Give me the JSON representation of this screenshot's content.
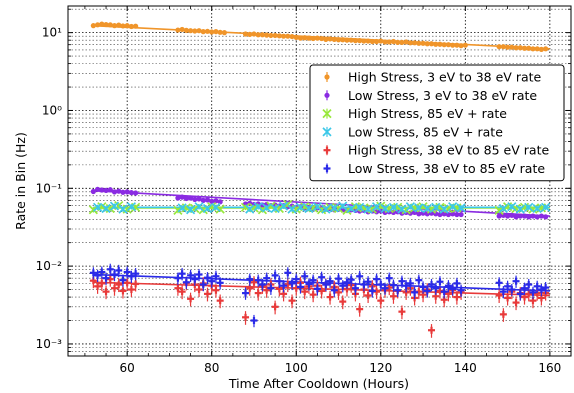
{
  "chart_data": {
    "type": "scatter",
    "title": "",
    "xlabel": "Time After Cooldown (Hours)",
    "ylabel": "Rate in Bin (Hz)",
    "xlim": [
      46,
      165
    ],
    "ylim": [
      0.0007,
      22
    ],
    "yscale": "log",
    "x_ticks": [
      60,
      80,
      100,
      120,
      140,
      160
    ],
    "x_tick_labels": [
      "60",
      "80",
      "100",
      "120",
      "140",
      "160"
    ],
    "y_ticks": [
      0.001,
      0.01,
      0.1,
      1,
      10
    ],
    "y_tick_labels": [
      "10⁻³",
      "10⁻²",
      "10⁻¹",
      "10⁰",
      "10¹"
    ],
    "grid": "major-and-minor, dotted",
    "legend_position": "right",
    "series": [
      {
        "name": "High Stress, 3 eV to 38 eV rate",
        "color": "#f0952a",
        "marker": "dot",
        "fit": [
          [
            52,
            12.3
          ],
          [
            160,
            6.2
          ]
        ],
        "x": [
          52,
          53,
          54,
          55,
          56,
          57,
          58,
          59,
          60,
          61,
          62,
          72,
          73,
          74,
          75,
          76,
          77,
          78,
          79,
          80,
          81,
          82,
          83,
          88,
          89,
          90,
          91,
          92,
          93,
          94,
          95,
          96,
          97,
          98,
          99,
          100,
          101,
          102,
          103,
          104,
          105,
          106,
          107,
          108,
          109,
          110,
          111,
          112,
          113,
          114,
          115,
          116,
          117,
          118,
          119,
          120,
          121,
          122,
          123,
          124,
          125,
          126,
          127,
          128,
          129,
          130,
          131,
          132,
          133,
          134,
          135,
          136,
          137,
          138,
          139,
          140,
          148,
          149,
          150,
          151,
          152,
          153,
          154,
          155,
          156,
          157,
          158,
          159
        ],
        "y": [
          12.3,
          12.6,
          12.9,
          12.7,
          12.6,
          12.3,
          12.5,
          12.2,
          12.3,
          12.0,
          12.1,
          10.8,
          11.0,
          10.7,
          10.6,
          10.5,
          10.6,
          10.3,
          10.4,
          10.2,
          10.3,
          10.1,
          10.0,
          9.6,
          9.5,
          9.6,
          9.4,
          9.4,
          9.3,
          9.2,
          9.2,
          9.1,
          9.0,
          9.0,
          8.9,
          8.7,
          8.5,
          8.6,
          8.5,
          8.4,
          8.5,
          8.4,
          8.2,
          8.3,
          8.2,
          8.1,
          8.1,
          8.0,
          8.0,
          7.9,
          7.9,
          7.8,
          7.8,
          7.7,
          7.7,
          7.8,
          7.6,
          7.6,
          7.7,
          7.5,
          7.5,
          7.6,
          7.4,
          7.4,
          7.3,
          7.3,
          7.2,
          7.2,
          7.1,
          7.1,
          7.0,
          7.0,
          6.9,
          6.9,
          6.8,
          6.9,
          6.6,
          6.6,
          6.5,
          6.5,
          6.4,
          6.4,
          6.3,
          6.3,
          6.2,
          6.2,
          6.1,
          6.2
        ],
        "yerr_frac": 0.05
      },
      {
        "name": "Low Stress, 3 eV to 38 eV rate",
        "color": "#8a2be2",
        "marker": "dot",
        "fit": [
          [
            52,
            0.093
          ],
          [
            160,
            0.044
          ]
        ],
        "x": [
          52,
          53,
          54,
          55,
          56,
          57,
          58,
          59,
          60,
          61,
          62,
          72,
          73,
          74,
          75,
          76,
          77,
          78,
          79,
          80,
          81,
          82,
          88,
          89,
          90,
          91,
          92,
          93,
          94,
          95,
          96,
          97,
          98,
          99,
          100,
          101,
          102,
          103,
          104,
          105,
          106,
          107,
          108,
          109,
          110,
          111,
          112,
          113,
          114,
          115,
          116,
          117,
          118,
          119,
          120,
          121,
          122,
          123,
          124,
          125,
          126,
          127,
          128,
          129,
          130,
          131,
          132,
          133,
          134,
          135,
          136,
          137,
          138,
          139,
          148,
          149,
          150,
          151,
          152,
          153,
          154,
          155,
          156,
          157,
          158,
          159
        ],
        "y": [
          0.091,
          0.097,
          0.095,
          0.094,
          0.096,
          0.09,
          0.092,
          0.089,
          0.09,
          0.088,
          0.087,
          0.075,
          0.077,
          0.074,
          0.075,
          0.072,
          0.073,
          0.07,
          0.071,
          0.068,
          0.069,
          0.067,
          0.063,
          0.064,
          0.062,
          0.063,
          0.061,
          0.062,
          0.06,
          0.061,
          0.059,
          0.06,
          0.058,
          0.059,
          0.057,
          0.058,
          0.056,
          0.057,
          0.055,
          0.056,
          0.055,
          0.054,
          0.055,
          0.053,
          0.054,
          0.053,
          0.052,
          0.053,
          0.052,
          0.051,
          0.052,
          0.05,
          0.051,
          0.05,
          0.051,
          0.049,
          0.05,
          0.049,
          0.05,
          0.048,
          0.049,
          0.048,
          0.049,
          0.047,
          0.048,
          0.047,
          0.048,
          0.047,
          0.046,
          0.047,
          0.046,
          0.047,
          0.046,
          0.046,
          0.044,
          0.045,
          0.044,
          0.045,
          0.043,
          0.044,
          0.044,
          0.043,
          0.044,
          0.043,
          0.044,
          0.043
        ],
        "yerr_frac": 0.07
      },
      {
        "name": "High Stress, 85 eV + rate",
        "color": "#98e83a",
        "marker": "x",
        "fit": [
          [
            52,
            0.056
          ],
          [
            160,
            0.056
          ]
        ],
        "x": [
          52,
          54,
          56,
          58,
          60,
          62,
          72,
          74,
          76,
          78,
          80,
          82,
          88,
          90,
          92,
          94,
          96,
          98,
          100,
          102,
          104,
          106,
          108,
          110,
          112,
          114,
          116,
          118,
          120,
          122,
          124,
          126,
          128,
          130,
          132,
          134,
          136,
          138,
          148,
          150,
          152,
          154,
          156,
          158
        ],
        "y": [
          0.053,
          0.058,
          0.055,
          0.06,
          0.054,
          0.057,
          0.052,
          0.056,
          0.055,
          0.053,
          0.058,
          0.054,
          0.057,
          0.056,
          0.053,
          0.059,
          0.055,
          0.062,
          0.054,
          0.058,
          0.056,
          0.053,
          0.057,
          0.055,
          0.052,
          0.058,
          0.056,
          0.054,
          0.059,
          0.055,
          0.057,
          0.053,
          0.056,
          0.058,
          0.054,
          0.057,
          0.055,
          0.056,
          0.052,
          0.058,
          0.055,
          0.057,
          0.054,
          0.056
        ],
        "yerr_frac": 0.08
      },
      {
        "name": "Low Stress, 85 eV + rate",
        "color": "#3cc8e8",
        "marker": "x",
        "fit": [
          [
            52,
            0.057
          ],
          [
            160,
            0.057
          ]
        ],
        "x": [
          53,
          55,
          57,
          59,
          61,
          73,
          75,
          77,
          79,
          81,
          89,
          91,
          93,
          95,
          97,
          99,
          101,
          103,
          105,
          107,
          109,
          111,
          113,
          115,
          117,
          119,
          121,
          123,
          125,
          127,
          129,
          131,
          133,
          135,
          137,
          139,
          149,
          151,
          153,
          155,
          157,
          159
        ],
        "y": [
          0.057,
          0.055,
          0.059,
          0.054,
          0.058,
          0.056,
          0.053,
          0.058,
          0.055,
          0.057,
          0.054,
          0.058,
          0.056,
          0.055,
          0.059,
          0.054,
          0.057,
          0.055,
          0.058,
          0.054,
          0.056,
          0.059,
          0.055,
          0.057,
          0.054,
          0.058,
          0.055,
          0.057,
          0.054,
          0.058,
          0.056,
          0.055,
          0.057,
          0.054,
          0.058,
          0.056,
          0.055,
          0.058,
          0.054,
          0.057,
          0.055,
          0.057
        ],
        "yerr_frac": 0.08
      },
      {
        "name": "High Stress, 38 eV to 85 eV rate",
        "color": "#e83a3a",
        "marker": "plus",
        "fit": [
          [
            52,
            0.0062
          ],
          [
            160,
            0.0042
          ]
        ],
        "x": [
          52,
          53,
          54,
          55,
          56,
          57,
          58,
          59,
          60,
          61,
          62,
          72,
          73,
          74,
          75,
          76,
          77,
          78,
          79,
          80,
          81,
          82,
          88,
          89,
          90,
          91,
          92,
          93,
          94,
          95,
          96,
          97,
          98,
          99,
          100,
          101,
          102,
          103,
          104,
          105,
          106,
          107,
          108,
          109,
          110,
          111,
          112,
          113,
          114,
          115,
          116,
          117,
          118,
          119,
          120,
          121,
          122,
          123,
          124,
          125,
          126,
          127,
          128,
          129,
          130,
          131,
          132,
          133,
          134,
          135,
          136,
          137,
          138,
          139,
          148,
          149,
          150,
          151,
          152,
          153,
          154,
          155,
          156,
          157,
          158,
          159
        ],
        "y": [
          0.0065,
          0.0055,
          0.006,
          0.0047,
          0.0068,
          0.0052,
          0.0058,
          0.0048,
          0.0061,
          0.005,
          0.0059,
          0.0052,
          0.0047,
          0.0061,
          0.0038,
          0.0058,
          0.005,
          0.006,
          0.0044,
          0.0056,
          0.0049,
          0.0036,
          0.0022,
          0.0052,
          0.0062,
          0.0045,
          0.0055,
          0.0049,
          0.0058,
          0.003,
          0.0051,
          0.0044,
          0.0058,
          0.0036,
          0.0052,
          0.0061,
          0.0047,
          0.0055,
          0.0043,
          0.0056,
          0.0048,
          0.0058,
          0.004,
          0.0054,
          0.0046,
          0.0035,
          0.0051,
          0.0057,
          0.0044,
          0.0028,
          0.005,
          0.0042,
          0.0055,
          0.0047,
          0.0036,
          0.0049,
          0.0053,
          0.0041,
          0.0048,
          0.0026,
          0.0046,
          0.0052,
          0.0039,
          0.0047,
          0.0043,
          0.005,
          0.0015,
          0.0041,
          0.0048,
          0.0037,
          0.0044,
          0.0049,
          0.004,
          0.0046,
          0.0042,
          0.0024,
          0.0039,
          0.0047,
          0.0034,
          0.0045,
          0.004,
          0.0044,
          0.0036,
          0.0045,
          0.0039,
          0.0045
        ],
        "yerr_frac": 0.2
      },
      {
        "name": "Low Stress, 38 eV to 85 eV rate",
        "color": "#2a2ae8",
        "marker": "plus",
        "fit": [
          [
            52,
            0.0078
          ],
          [
            160,
            0.0048
          ]
        ],
        "x": [
          52,
          53,
          54,
          55,
          56,
          57,
          58,
          59,
          60,
          61,
          62,
          72,
          73,
          74,
          75,
          76,
          77,
          78,
          79,
          80,
          81,
          82,
          88,
          89,
          90,
          91,
          92,
          93,
          94,
          95,
          96,
          97,
          98,
          99,
          100,
          101,
          102,
          103,
          104,
          105,
          106,
          107,
          108,
          109,
          110,
          111,
          112,
          113,
          114,
          115,
          116,
          117,
          118,
          119,
          120,
          121,
          122,
          123,
          124,
          125,
          126,
          127,
          128,
          129,
          130,
          131,
          132,
          133,
          134,
          135,
          136,
          137,
          138,
          139,
          148,
          149,
          150,
          151,
          152,
          153,
          154,
          155,
          156,
          157,
          158,
          159
        ],
        "y": [
          0.0082,
          0.0076,
          0.0084,
          0.007,
          0.0091,
          0.0078,
          0.0088,
          0.0066,
          0.0084,
          0.0074,
          0.008,
          0.007,
          0.008,
          0.0062,
          0.0076,
          0.0068,
          0.0078,
          0.0058,
          0.0071,
          0.0064,
          0.0074,
          0.0061,
          0.0045,
          0.0068,
          0.002,
          0.0066,
          0.0058,
          0.007,
          0.0052,
          0.0076,
          0.0064,
          0.0056,
          0.0082,
          0.006,
          0.0068,
          0.0054,
          0.0074,
          0.0059,
          0.0066,
          0.0051,
          0.0072,
          0.0058,
          0.0064,
          0.0049,
          0.0069,
          0.0056,
          0.0062,
          0.0067,
          0.0052,
          0.0074,
          0.0058,
          0.0063,
          0.0048,
          0.0068,
          0.0058,
          0.0052,
          0.007,
          0.0057,
          0.0049,
          0.0064,
          0.0056,
          0.006,
          0.0046,
          0.0066,
          0.0054,
          0.0048,
          0.0058,
          0.0052,
          0.0063,
          0.0047,
          0.0056,
          0.0051,
          0.006,
          0.0049,
          0.0061,
          0.0047,
          0.0055,
          0.005,
          0.0064,
          0.0044,
          0.0052,
          0.0058,
          0.0046,
          0.0055,
          0.005,
          0.0053
        ],
        "yerr_frac": 0.18
      }
    ]
  }
}
